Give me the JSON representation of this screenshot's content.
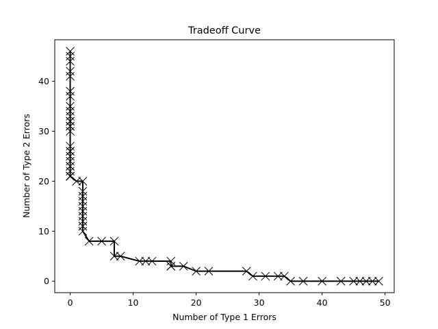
{
  "chart_data": {
    "type": "line",
    "title": "Tradeoff Curve",
    "xlabel": "Number of Type 1 Errors",
    "ylabel": "Number of Type 2 Errors",
    "xlim": [
      -2.45,
      51.45
    ],
    "ylim": [
      -2.3,
      48.3
    ],
    "xticks": [
      0,
      10,
      20,
      30,
      40,
      50
    ],
    "yticks": [
      0,
      10,
      20,
      30,
      40
    ],
    "grid": false,
    "marker": "x",
    "line_color": "#000000",
    "x": [
      0,
      0,
      0,
      0,
      0,
      0,
      0,
      0,
      0,
      0,
      0,
      0,
      0,
      0,
      0,
      0,
      0,
      0,
      0,
      0,
      0,
      0,
      0,
      0,
      0,
      0,
      0,
      0,
      1,
      2,
      2,
      2,
      2,
      2,
      2,
      2,
      2,
      2,
      2,
      2,
      3,
      5,
      7,
      7,
      8,
      11,
      12,
      13,
      16,
      16,
      16,
      18,
      20,
      22,
      28,
      29,
      31,
      33,
      34,
      35,
      37,
      40,
      43,
      45,
      46,
      47,
      48,
      49
    ],
    "y": [
      46,
      45,
      44,
      42,
      41,
      38,
      37,
      35,
      34,
      33,
      32,
      32,
      31,
      31,
      30,
      27,
      26,
      26,
      25,
      24,
      23,
      23,
      22,
      21,
      21,
      21,
      21,
      21,
      20,
      20,
      18,
      17,
      16,
      15,
      14,
      13,
      12,
      11,
      11,
      10,
      8,
      8,
      8,
      5,
      5,
      4,
      4,
      4,
      4,
      3,
      3,
      3,
      2,
      2,
      2,
      1,
      1,
      1,
      1,
      0,
      0,
      0,
      0,
      0,
      0,
      0,
      0,
      0
    ]
  }
}
